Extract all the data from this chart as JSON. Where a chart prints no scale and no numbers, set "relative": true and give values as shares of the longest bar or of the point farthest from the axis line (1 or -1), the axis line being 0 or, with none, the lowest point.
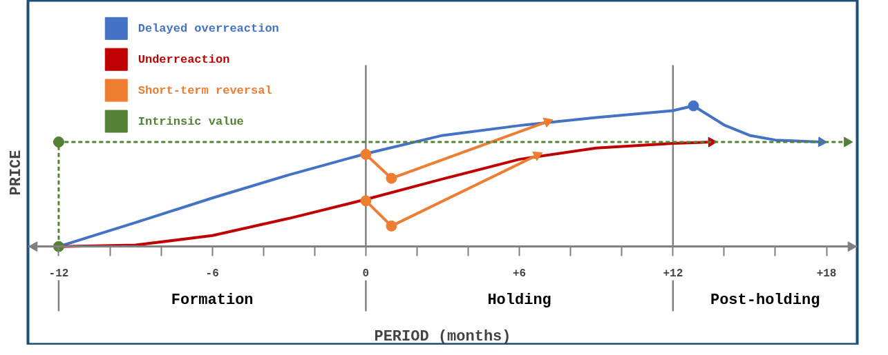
{
  "chart_data": {
    "type": "line",
    "relative": true,
    "xlabel": "PERIOD (months)",
    "ylabel": "PRICE",
    "legend": "top left",
    "grid": false,
    "xlim": [
      -13.2,
      19.2
    ],
    "xticks": [
      {
        "value": -12,
        "label": "-12"
      },
      {
        "value": -10,
        "label": null
      },
      {
        "value": -8,
        "label": null
      },
      {
        "value": -6,
        "label": "-6"
      },
      {
        "value": -4,
        "label": null
      },
      {
        "value": -2,
        "label": null
      },
      0,
      {
        "value": 2,
        "label": null
      },
      {
        "value": 4,
        "label": null
      },
      {
        "value": 6,
        "label": "+6"
      },
      {
        "value": 8,
        "label": null
      },
      {
        "value": 10,
        "label": null
      },
      {
        "value": 12,
        "label": "+12"
      },
      {
        "value": 14,
        "label": null
      },
      {
        "value": 16,
        "label": null
      },
      {
        "value": 18,
        "label": "+18"
      }
    ],
    "ref_lines": [
      {
        "axis": "x",
        "value": 0,
        "label": null,
        "color": "#808080"
      },
      {
        "axis": "x",
        "value": 12,
        "label": null,
        "color": "#808080"
      }
    ],
    "annotations": [
      "Formation",
      "Holding",
      "Post-holding"
    ],
    "series": [
      {
        "name": "Delayed overreaction",
        "color": "#4472c4",
        "x": [
          -12,
          -9,
          -6,
          -3,
          0,
          3,
          6,
          9,
          12,
          12.8,
          14,
          15,
          16,
          17.8
        ],
        "values": [
          0,
          0.17,
          0.345,
          0.51,
          0.66,
          0.79,
          0.86,
          0.917,
          0.966,
          1.0,
          0.864,
          0.79,
          0.757,
          0.743
        ]
      },
      {
        "name": "Underreaction",
        "color": "#c00000",
        "type": "line",
        "x": [
          -12,
          -9,
          -6,
          -3,
          0,
          3,
          6,
          9,
          12,
          13.5
        ],
        "values": [
          0,
          0.01,
          0.078,
          0.2,
          0.335,
          0.48,
          0.62,
          0.7,
          0.733,
          0.743
        ]
      },
      {
        "name": "Short-term reversal",
        "color": "#ed7d31",
        "type": "line",
        "x": [
          0,
          1,
          7.1
        ],
        "values": [
          0.655,
          0.485,
          0.888
        ]
      },
      {
        "color": "#ed7d31",
        "type": "line",
        "x": [
          0,
          1,
          6.7
        ],
        "values": [
          0.325,
          0.146,
          0.65
        ]
      },
      {
        "name": "Intrinsic value",
        "color": "#548235",
        "type": "line",
        "line_style": "dashed",
        "x": [
          -12,
          -12,
          18.8
        ],
        "values": [
          0,
          0.743,
          0.743
        ]
      },
      {
        "color": "#ed7d31",
        "type": "scatter",
        "x": [
          0,
          1,
          0,
          1
        ],
        "values": [
          0.655,
          0.485,
          0.325,
          0.146
        ]
      },
      {
        "color": "#4472c4",
        "type": "scatter",
        "x": [
          12.8
        ],
        "values": [
          1.0
        ]
      },
      {
        "color": "#548235",
        "type": "scatter",
        "x": [
          -12,
          -12
        ],
        "values": [
          0,
          0.743
        ]
      }
    ]
  }
}
